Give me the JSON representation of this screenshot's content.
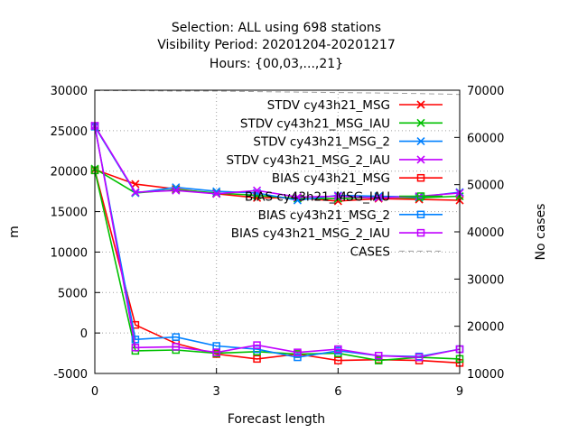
{
  "chart_data": {
    "type": "line",
    "title": [
      "Selection: ALL using   698 stations",
      "Visibility   Period: 20201204-20201217",
      "Hours: {00,03,...,21}"
    ],
    "xlabel": "Forecast length",
    "ylabel": "m",
    "y2label": "No cases",
    "xlim": [
      0,
      9
    ],
    "ylim": [
      -5000,
      30000
    ],
    "y2lim": [
      10000,
      70000
    ],
    "xticks": [
      0,
      3,
      6,
      9
    ],
    "yticks": [
      -5000,
      0,
      5000,
      10000,
      15000,
      20000,
      25000,
      30000
    ],
    "y2ticks": [
      10000,
      20000,
      30000,
      40000,
      50000,
      60000,
      70000
    ],
    "grid": true,
    "legend_position": "top-right",
    "x": [
      0,
      1,
      2,
      3,
      4,
      5,
      6,
      7,
      8,
      9
    ],
    "series": [
      {
        "name": "STDV cy43h21_MSG",
        "color": "#ff0000",
        "marker": "x",
        "axis": "y1",
        "values": [
          20200,
          18400,
          17800,
          17200,
          16700,
          16700,
          16300,
          16600,
          16500,
          16400
        ]
      },
      {
        "name": "STDV cy43h21_MSG_IAU",
        "color": "#00c000",
        "marker": "x",
        "axis": "y1",
        "values": [
          20300,
          17300,
          17700,
          17300,
          17000,
          16600,
          16600,
          16800,
          16700,
          16900
        ]
      },
      {
        "name": "STDV cy43h21_MSG_2",
        "color": "#0080ff",
        "marker": "x",
        "axis": "y1",
        "values": [
          25500,
          17300,
          18000,
          17500,
          17300,
          16400,
          17000,
          16900,
          16800,
          17400
        ]
      },
      {
        "name": "STDV cy43h21_MSG_2_IAU",
        "color": "#c000ff",
        "marker": "x",
        "axis": "y1",
        "values": [
          25600,
          17400,
          17600,
          17200,
          17600,
          16800,
          16900,
          16700,
          16900,
          17300
        ]
      },
      {
        "name": "BIAS cy43h21_MSG",
        "color": "#ff0000",
        "marker": "square",
        "axis": "y1",
        "values": [
          20100,
          1000,
          -1300,
          -2600,
          -3200,
          -2600,
          -3400,
          -3300,
          -3400,
          -3700
        ]
      },
      {
        "name": "BIAS cy43h21_MSG_IAU",
        "color": "#00c000",
        "marker": "square",
        "axis": "y1",
        "values": [
          20100,
          -2200,
          -2100,
          -2500,
          -2300,
          -2600,
          -2500,
          -3400,
          -3000,
          -3200
        ]
      },
      {
        "name": "BIAS cy43h21_MSG_2",
        "color": "#0080ff",
        "marker": "square",
        "axis": "y1",
        "values": [
          25500,
          -800,
          -500,
          -1600,
          -2000,
          -3000,
          -2200,
          -2800,
          -2900,
          -2000
        ]
      },
      {
        "name": "BIAS cy43h21_MSG_2_IAU",
        "color": "#c000ff",
        "marker": "square",
        "axis": "y1",
        "values": [
          25600,
          -1800,
          -1700,
          -2400,
          -1500,
          -2400,
          -2000,
          -2800,
          -3000,
          -2000
        ]
      },
      {
        "name": "CASES",
        "color": "#a0a0a0",
        "marker": "none",
        "axis": "y2",
        "values": [
          69900,
          69900,
          69800,
          69800,
          69700,
          69600,
          69500,
          69400,
          69300,
          69100
        ]
      }
    ]
  }
}
